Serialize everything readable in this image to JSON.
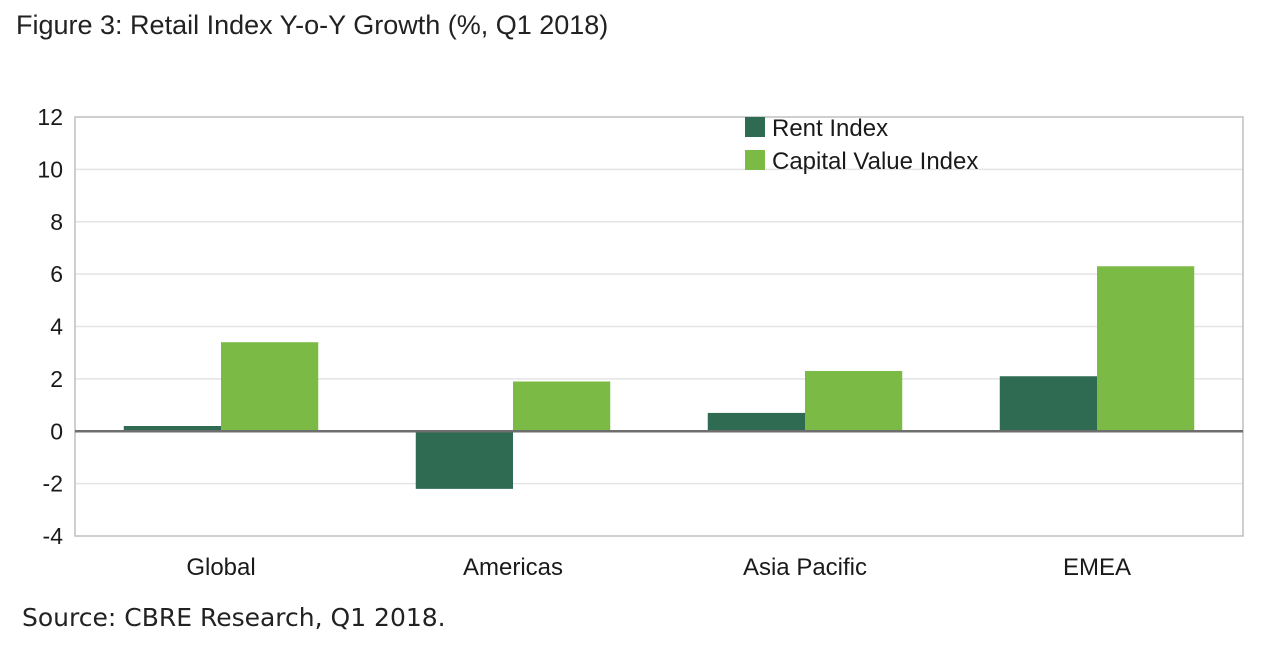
{
  "figure_title": "Figure 3: Retail Index Y-o-Y Growth (%, Q1 2018)",
  "source": "Source: CBRE Research, Q1 2018.",
  "chart_data": {
    "type": "bar",
    "title": "Figure 3: Retail Index Y-o-Y Growth (%, Q1 2018)",
    "xlabel": "",
    "ylabel": "",
    "categories": [
      "Global",
      "Americas",
      "Asia Pacific",
      "EMEA"
    ],
    "series": [
      {
        "name": "Rent Index",
        "color": "#2e6b52",
        "values": [
          0.2,
          -2.2,
          0.7,
          2.1
        ]
      },
      {
        "name": "Capital Value Index",
        "color": "#7bbb45",
        "values": [
          3.4,
          1.9,
          2.3,
          6.3
        ]
      }
    ],
    "ylim": [
      -4,
      12
    ],
    "yticks": [
      12,
      10,
      8,
      6,
      4,
      2,
      0,
      -2,
      -4
    ],
    "grid": true,
    "legend": "top-center"
  }
}
